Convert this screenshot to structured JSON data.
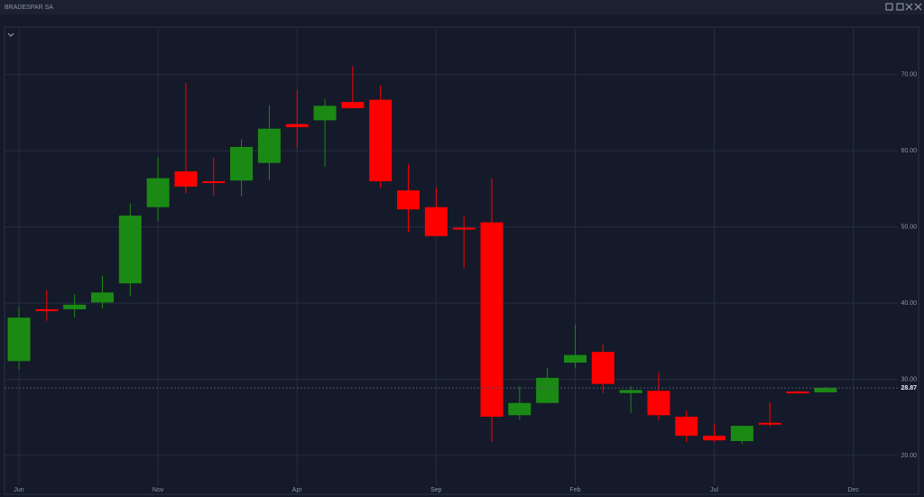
{
  "chart_data": {
    "type": "candlestick",
    "title": "BRADESPAR SA",
    "x": [
      0,
      1,
      2,
      3,
      4,
      5,
      6,
      7,
      8,
      9,
      10,
      11,
      12,
      13,
      14,
      15,
      16,
      17,
      18,
      19,
      20,
      21,
      22,
      23,
      24,
      25,
      26,
      27,
      28,
      29
    ],
    "open": [
      32.4,
      39.2,
      39.2,
      40.1,
      42.6,
      52.6,
      57.3,
      56.0,
      56.1,
      58.4,
      63.5,
      64.0,
      66.4,
      66.7,
      54.8,
      52.6,
      49.9,
      50.6,
      25.3,
      26.9,
      32.2,
      33.6,
      28.2,
      28.5,
      25.1,
      22.6,
      21.9,
      24.3,
      28.4,
      28.3
    ],
    "high": [
      39.5,
      41.7,
      41.2,
      43.6,
      53.1,
      59.1,
      68.9,
      59.1,
      61.5,
      66.0,
      68.0,
      66.8,
      71.1,
      68.6,
      58.2,
      55.2,
      51.4,
      56.4,
      29.1,
      31.5,
      37.2,
      34.6,
      29.1,
      30.9,
      25.9,
      24.1,
      23.9,
      27.0,
      28.5,
      29.0
    ],
    "low": [
      31.3,
      37.7,
      38.1,
      39.3,
      40.9,
      50.8,
      54.4,
      54.1,
      54.0,
      56.1,
      60.3,
      57.9,
      65.6,
      55.1,
      49.3,
      48.8,
      44.6,
      21.8,
      24.7,
      26.9,
      31.5,
      28.2,
      25.6,
      24.6,
      21.8,
      21.8,
      21.5,
      23.8,
      28.3,
      28.3
    ],
    "close": [
      38.1,
      39.1,
      39.8,
      41.4,
      51.5,
      56.4,
      55.3,
      55.9,
      60.5,
      62.9,
      63.1,
      65.9,
      65.6,
      56.0,
      52.3,
      48.8,
      49.8,
      25.1,
      26.9,
      30.2,
      33.2,
      29.4,
      28.6,
      25.3,
      22.6,
      22.0,
      23.9,
      24.2,
      28.3,
      28.9
    ],
    "up_color": "#1b8a14",
    "down_color": "#ff0000",
    "xlim": [
      -0.52,
      31.6
    ],
    "xticks": [
      {
        "value": 0,
        "label": "Jun"
      },
      {
        "value": 5,
        "label": "Nov"
      },
      {
        "value": 10,
        "label": "Apr"
      },
      {
        "value": 15,
        "label": "Sep"
      },
      {
        "value": 20,
        "label": "Feb"
      },
      {
        "value": 25,
        "label": "Jul"
      },
      {
        "value": 30,
        "label": "Dec"
      }
    ],
    "ylim": [
      16.1,
      76.0
    ],
    "yticks": [
      {
        "value": 20,
        "label": "20.00"
      },
      {
        "value": 30,
        "label": "30.00"
      },
      {
        "value": 40,
        "label": "40.00"
      },
      {
        "value": 50,
        "label": "50.00"
      },
      {
        "value": 60,
        "label": "60.00"
      },
      {
        "value": 70,
        "label": "70.00"
      }
    ],
    "last_price": 28.87,
    "grid": true
  }
}
